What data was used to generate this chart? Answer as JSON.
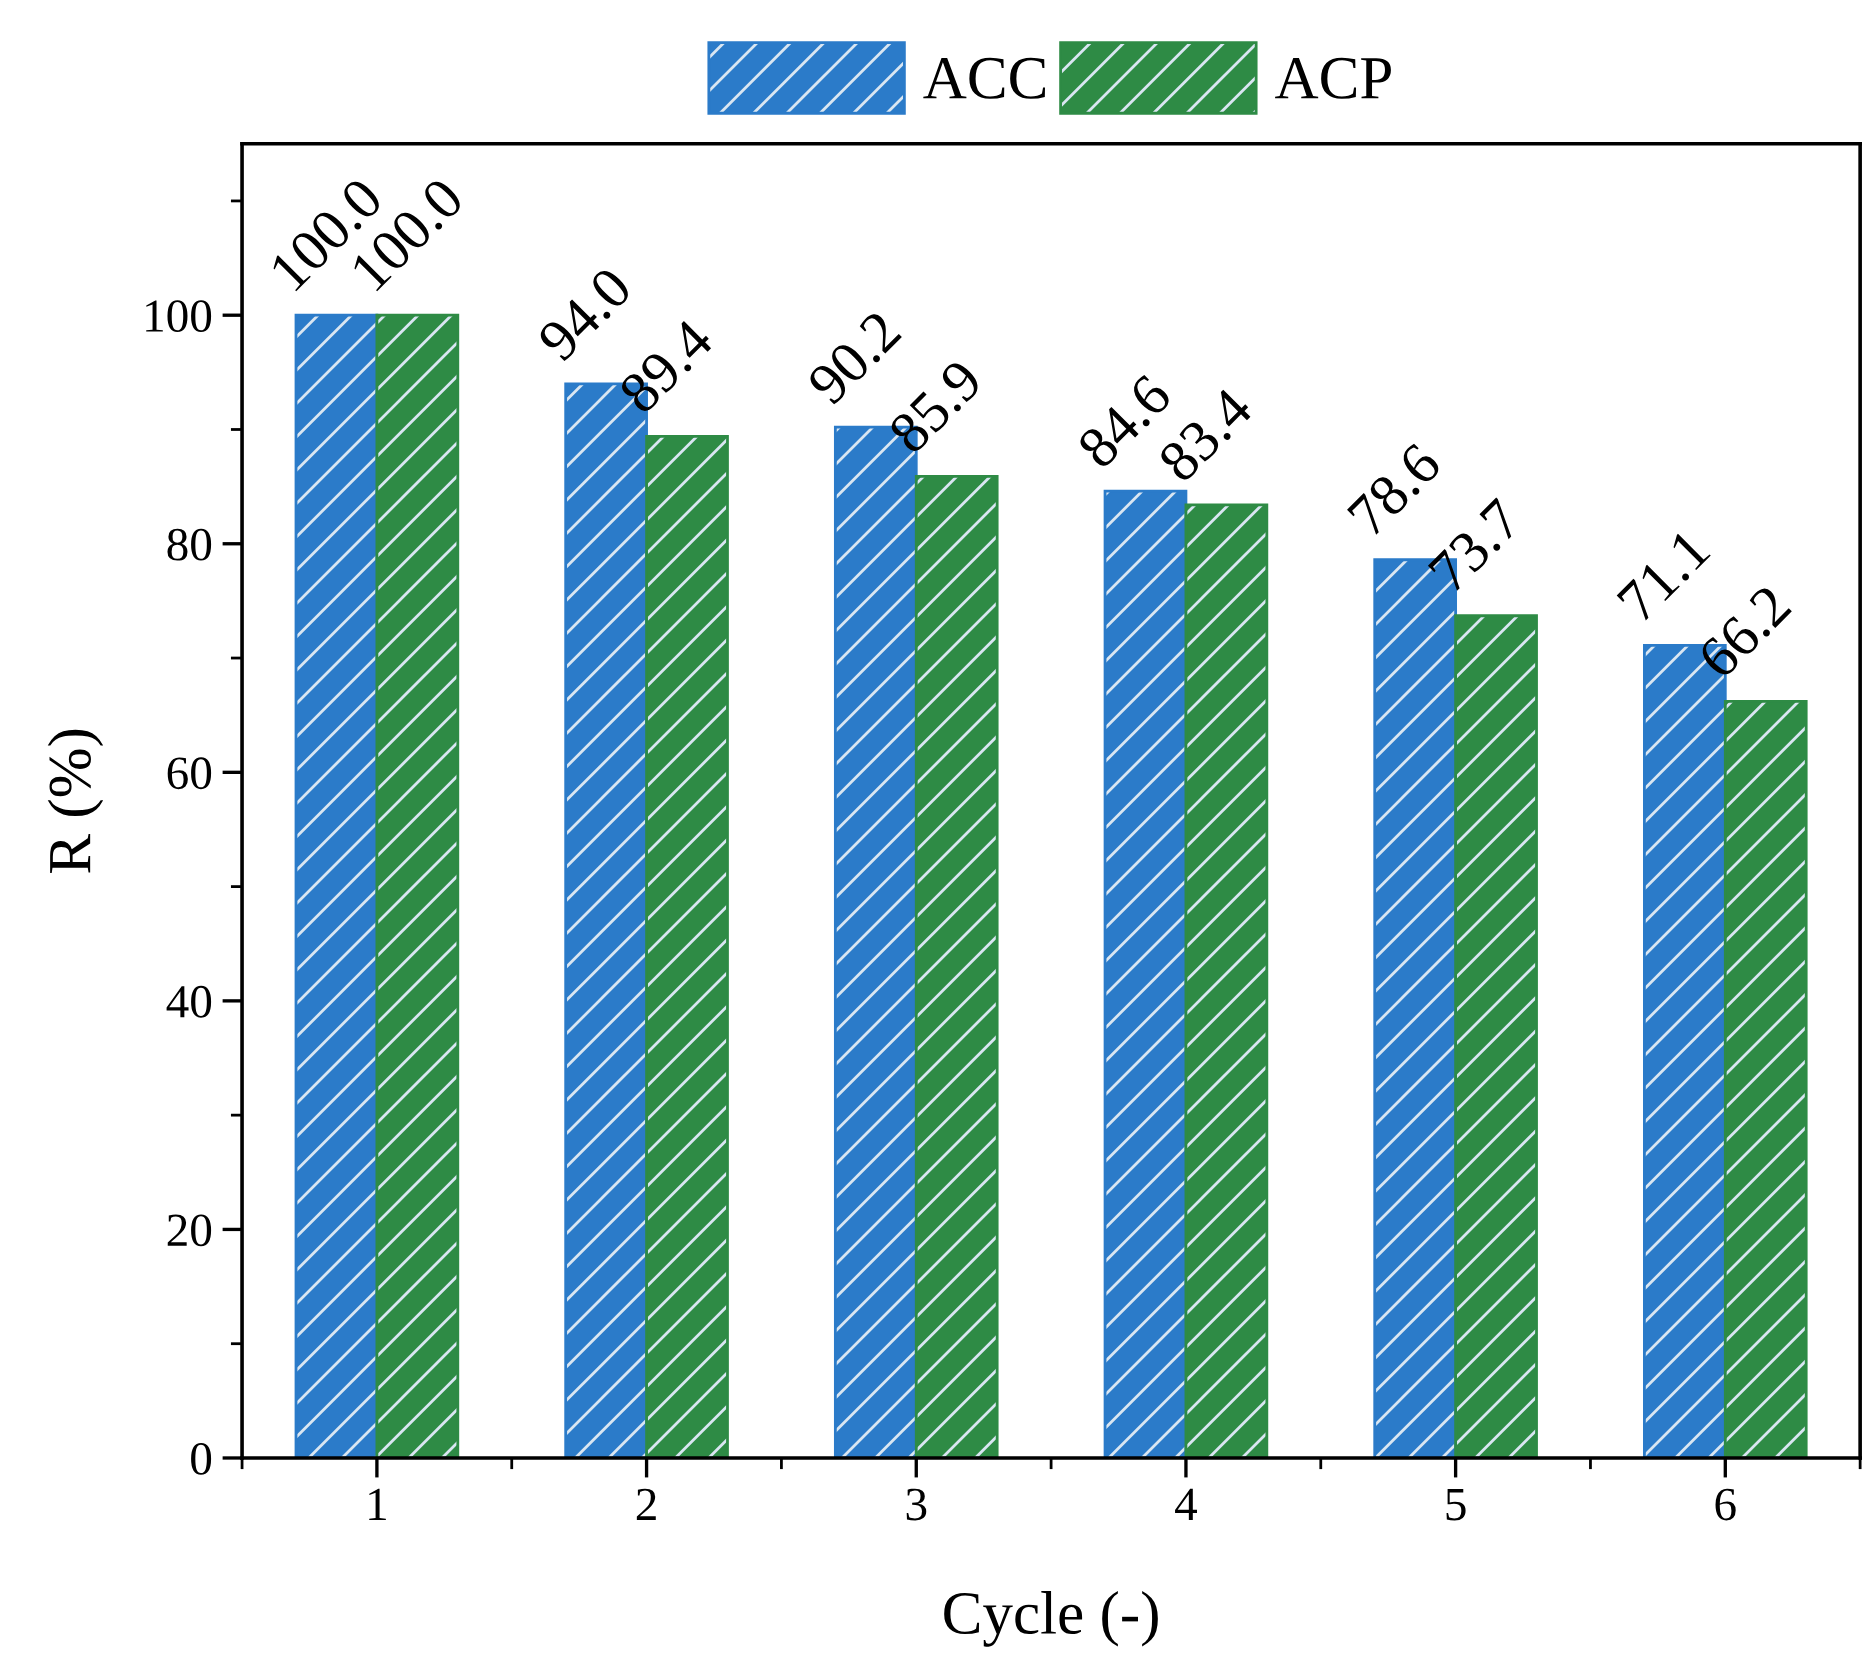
{
  "chart_data": {
    "type": "bar",
    "xlabel": "Cycle (-)",
    "ylabel": "R (%)",
    "categories": [
      "1",
      "2",
      "3",
      "4",
      "5",
      "6"
    ],
    "series": [
      {
        "name": "ACC",
        "color": "#2b7bc9",
        "values": [
          100.0,
          94.0,
          90.2,
          84.6,
          78.6,
          71.1
        ],
        "value_labels": [
          "100.0",
          "94.0",
          "90.2",
          "84.6",
          "78.6",
          "71.1"
        ]
      },
      {
        "name": "ACP",
        "color": "#2e8b45",
        "values": [
          100.0,
          89.4,
          85.9,
          83.4,
          73.7,
          66.2
        ],
        "value_labels": [
          "100.0",
          "89.4",
          "85.9",
          "83.4",
          "73.7",
          "66.2"
        ]
      }
    ],
    "ylim": [
      0,
      115
    ],
    "yticks": [
      0,
      20,
      40,
      60,
      80,
      100
    ],
    "legend": "top",
    "grid": false
  }
}
